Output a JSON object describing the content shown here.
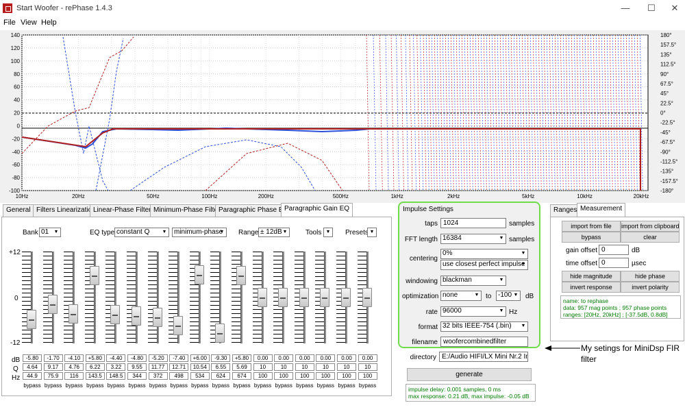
{
  "window": {
    "title": "Start Woofer  -  rePhase 1.4.3",
    "minimize": "—",
    "maximize": "☐",
    "close": "✕"
  },
  "menu": [
    "File",
    "View",
    "Help"
  ],
  "graph": {
    "mag_ticks": [
      "140",
      "120",
      "100",
      "80",
      "60",
      "40",
      "20",
      "0",
      "-20",
      "-40",
      "-60",
      "-80",
      "-100"
    ],
    "phase_ticks": [
      "180°",
      "157.5°",
      "135°",
      "112.5°",
      "90°",
      "67.5°",
      "45°",
      "22.5°",
      "0°",
      "-22.5°",
      "-45°",
      "-67.5°",
      "-90°",
      "-112.5°",
      "-135°",
      "-157.5°",
      "-180°"
    ],
    "freq_ticks": [
      "10Hz",
      "20Hz",
      "50Hz",
      "100Hz",
      "200Hz",
      "500Hz",
      "1kHz",
      "2kHz",
      "5kHz",
      "10kHz",
      "20kHz"
    ]
  },
  "tabs": [
    "General",
    "Filters Linearization",
    "Linear-Phase Filters",
    "Minimum-Phase Filters",
    "Paragraphic Phase EQ",
    "Paragraphic Gain EQ"
  ],
  "eq": {
    "bank_label": "Bank",
    "bank_value": "01",
    "eqtype_label": "EQ type",
    "eqtype_value": "constant Q",
    "phase_value": "minimum-phase",
    "range_label": "Range",
    "range_value": "± 12dB",
    "tools_label": "Tools",
    "presets_label": "Presets",
    "scale_top": "+12",
    "scale_mid": "0",
    "scale_bot": "-12",
    "row_labels": [
      "dB",
      "Q",
      "Hz"
    ],
    "db": [
      "-5.80",
      "-1.70",
      "-4.10",
      "+5.80",
      "-4.40",
      "-4.80",
      "-5.20",
      "-7.40",
      "+6.00",
      "-9.30",
      "+5.80",
      "0.00",
      "0.00",
      "0.00",
      "0.00",
      "0.00",
      "0.00"
    ],
    "q": [
      "4.64",
      "9.17",
      "4.76",
      "6.22",
      "3.22",
      "9.55",
      "11.77",
      "12.71",
      "10.54",
      "6.55",
      "5.69",
      "10",
      "10",
      "10",
      "10",
      "10",
      "10"
    ],
    "hz": [
      "44.9",
      "75.9",
      "116",
      "143.5",
      "148.5",
      "344",
      "372",
      "498",
      "534",
      "624",
      "674",
      "100",
      "100",
      "100",
      "100",
      "100",
      "100"
    ],
    "gain_fraction": [
      0.258,
      0.429,
      0.321,
      0.742,
      0.317,
      0.3,
      0.283,
      0.192,
      0.75,
      0.113,
      0.742,
      0.5,
      0.5,
      0.5,
      0.5,
      0.5,
      0.5
    ],
    "bypass_label": "bypass"
  },
  "impulse": {
    "title": "Impulse Settings",
    "taps_label": "taps",
    "taps_value": "1024",
    "taps_unit": "samples",
    "fft_label": "FFT length",
    "fft_value": "16384",
    "fft_unit": "samples",
    "centering_label": "centering",
    "centering_value1": "0%",
    "centering_value2": "use closest perfect impulse",
    "windowing_label": "windowing",
    "windowing_value": "blackman",
    "optimization_label": "optimization",
    "optimization_value": "none",
    "opt_to": "to",
    "opt_db_value": "-100",
    "opt_db_unit": "dB",
    "rate_label": "rate",
    "rate_value": "96000",
    "rate_unit": "Hz",
    "format_label": "format",
    "format_value": "32 bits IEEE-754 (.bin)",
    "filename_label": "filename",
    "filename_value": "woofercombinedfilter",
    "directory_label": "directory",
    "directory_value": "E:/Audio HIFI/LX Mini Nr.2  Improv",
    "generate": "generate",
    "info_lines": [
      "impulse delay: 0.001 samples, 0 ms",
      "max response: 0.21 dB, max impulse: -0.05 dB"
    ]
  },
  "right": {
    "tabs": [
      "Ranges",
      "Measurement"
    ],
    "import_file": "import from file",
    "import_clipboard": "import from clipboard",
    "bypass": "bypass",
    "clear": "clear",
    "gain_offset_label": "gain offset",
    "gain_offset_value": "0",
    "gain_offset_unit": "dB",
    "time_offset_label": "time offset",
    "time_offset_value": "0",
    "time_offset_unit": "µsec",
    "hide_magnitude": "hide magnitude",
    "hide_phase": "hide phase",
    "invert_response": "invert response",
    "invert_polarity": "invert polarity",
    "info_lines": [
      "name: to rephase",
      "data: 957 mag points ; 957 phase points",
      "ranges: [20Hz, 20kHz] ; [-37.5dB, 0.8dB]"
    ]
  },
  "annotation": {
    "arrow": "◄",
    "text_line1": "My setings for MiniDsp FIR",
    "text_line2": "filter"
  },
  "colors": {
    "magnitude": "#b21f1f",
    "phase_blue": "#2b4fd8",
    "accent_green": "#6fdc4a",
    "info_green": "#007a00"
  }
}
